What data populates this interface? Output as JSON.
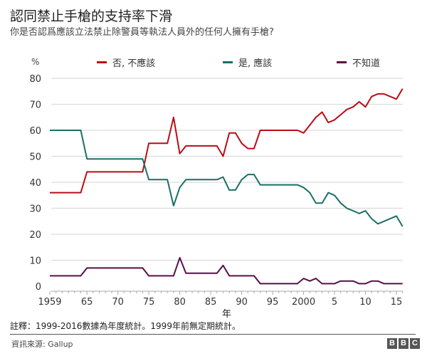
{
  "title": "認同禁止手槍的支持率下滑",
  "subtitle": "你是否認爲應該立法禁止除警員等執法人員外的任何人擁有手槍?",
  "note": "註釋：1999-2016數據為年度統計。1999年前無定期統計。",
  "source": "資訊來源: Gallup",
  "logo": [
    "B",
    "B",
    "C"
  ],
  "chart_data": {
    "type": "line",
    "title": "認同禁止手槍的支持率下滑",
    "xlabel": "年",
    "ylabel": "%",
    "ylim": [
      0,
      80
    ],
    "xlim": [
      1959,
      2016
    ],
    "yticks": [
      0,
      10,
      20,
      30,
      40,
      50,
      60,
      70,
      80
    ],
    "xticks": [
      {
        "year": 1959,
        "label": "1959"
      },
      {
        "year": 1965,
        "label": "65"
      },
      {
        "year": 1970,
        "label": "70"
      },
      {
        "year": 1975,
        "label": "75"
      },
      {
        "year": 1980,
        "label": "80"
      },
      {
        "year": 1985,
        "label": "85"
      },
      {
        "year": 1990,
        "label": "90"
      },
      {
        "year": 1995,
        "label": "95"
      },
      {
        "year": 2000,
        "label": "2000"
      },
      {
        "year": 2005,
        "label": "5"
      },
      {
        "year": 2010,
        "label": "10"
      },
      {
        "year": 2015,
        "label": "15"
      }
    ],
    "grid": true,
    "legend_position": "top",
    "x": [
      1959,
      1964,
      1965,
      1974,
      1975,
      1978,
      1979,
      1980,
      1981,
      1986,
      1987,
      1988,
      1989,
      1990,
      1991,
      1992,
      1993,
      1999,
      2000,
      2001,
      2002,
      2003,
      2004,
      2005,
      2006,
      2007,
      2008,
      2009,
      2010,
      2011,
      2012,
      2013,
      2014,
      2015,
      2016
    ],
    "series": [
      {
        "name": "否, 不應該",
        "color": "#b80d17",
        "values": [
          36,
          36,
          44,
          44,
          55,
          55,
          65,
          51,
          54,
          54,
          50,
          59,
          59,
          55,
          53,
          53,
          60,
          60,
          59,
          62,
          65,
          67,
          63,
          64,
          66,
          68,
          69,
          71,
          69,
          73,
          74,
          74,
          73,
          72,
          76
        ]
      },
      {
        "name": "是, 應該",
        "color": "#1a6f68",
        "values": [
          60,
          60,
          49,
          49,
          41,
          41,
          31,
          38,
          41,
          41,
          42,
          37,
          37,
          41,
          43,
          43,
          39,
          39,
          38,
          36,
          32,
          32,
          36,
          35,
          32,
          30,
          29,
          28,
          29,
          26,
          24,
          25,
          26,
          27,
          23
        ]
      },
      {
        "name": "不知道",
        "color": "#5a0f46",
        "values": [
          4,
          4,
          7,
          7,
          4,
          4,
          4,
          11,
          5,
          5,
          8,
          4,
          4,
          4,
          4,
          4,
          1,
          1,
          3,
          2,
          3,
          1,
          1,
          1,
          2,
          2,
          2,
          1,
          1,
          2,
          2,
          1,
          1,
          1,
          1
        ]
      }
    ]
  }
}
